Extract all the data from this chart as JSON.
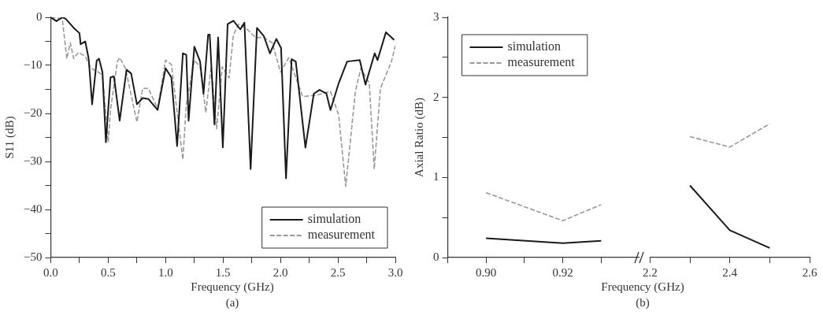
{
  "chart_data": [
    {
      "type": "line",
      "ylabel": "S11 (dB)",
      "xlabel": "Frequency (GHz)",
      "annotations": [
        "(a)"
      ],
      "xlim": [
        0,
        3
      ],
      "xticks": [
        {
          "value": 0,
          "label": "0.0"
        },
        {
          "value": 0.25,
          "label": null
        },
        {
          "value": 0.5,
          "label": "0.5"
        },
        {
          "value": 0.75,
          "label": null
        },
        {
          "value": 1,
          "label": "1.0"
        },
        {
          "value": 1.25,
          "label": null
        },
        {
          "value": 1.5,
          "label": "1.5"
        },
        {
          "value": 1.75,
          "label": null
        },
        {
          "value": 2,
          "label": "2.0"
        },
        {
          "value": 2.25,
          "label": null
        },
        {
          "value": 2.5,
          "label": "2.5"
        },
        {
          "value": 2.75,
          "label": null
        },
        {
          "value": 3,
          "label": "3.0"
        }
      ],
      "ylim": [
        -50,
        0
      ],
      "yticks": [
        {
          "value": -50,
          "label": "−50"
        },
        {
          "value": -45,
          "label": null
        },
        {
          "value": -40,
          "label": "−40"
        },
        {
          "value": -35,
          "label": null
        },
        {
          "value": -30,
          "label": "−30"
        },
        {
          "value": -25,
          "label": null
        },
        {
          "value": -20,
          "label": "−20"
        },
        {
          "value": -15,
          "label": null
        },
        {
          "value": -10,
          "label": "−10"
        },
        {
          "value": -5,
          "label": null
        },
        {
          "value": 0,
          "label": "0"
        }
      ],
      "grid": false,
      "legend": "bottom right",
      "marker": "none",
      "series": [
        {
          "name": "simulation",
          "color": "#1a1a1a",
          "line_style": "solid",
          "x": [
            0,
            0.05,
            0.1,
            0.13,
            0.2,
            0.25,
            0.26,
            0.3,
            0.33,
            0.36,
            0.4,
            0.42,
            0.45,
            0.48,
            0.52,
            0.55,
            0.6,
            0.66,
            0.7,
            0.75,
            0.8,
            0.85,
            0.93,
            1,
            1.05,
            1.1,
            1.15,
            1.18,
            1.2,
            1.25,
            1.3,
            1.33,
            1.37,
            1.384,
            1.425,
            1.457,
            1.498,
            1.54,
            1.59,
            1.65,
            1.686,
            1.74,
            1.795,
            1.855,
            1.908,
            1.964,
            2.005,
            2.048,
            2.097,
            2.133,
            2.217,
            2.29,
            2.34,
            2.4,
            2.435,
            2.507,
            2.58,
            2.69,
            2.74,
            2.82,
            2.845,
            2.918,
            2.99
          ],
          "values": [
            0,
            -0.8,
            0,
            -0.3,
            -2.2,
            -3.3,
            -5.6,
            -5,
            -8.6,
            -18.1,
            -9,
            -8.6,
            -11.4,
            -26,
            -12.5,
            -12.3,
            -21.5,
            -10.9,
            -11.7,
            -18.1,
            -16.8,
            -17,
            -19.3,
            -10.6,
            -12.5,
            -26.8,
            -7.5,
            -7.8,
            -21.5,
            -6.1,
            -9.2,
            -15.9,
            -3.6,
            -3.6,
            -22.3,
            -4.2,
            -27.1,
            -1.4,
            -0.7,
            -2.5,
            -1.1,
            -31.6,
            -2.2,
            -3.9,
            -7.5,
            -4.5,
            -6.4,
            -33.5,
            -8.7,
            -9.2,
            -27.1,
            -15.9,
            -15.1,
            -15.9,
            -19.3,
            -13.7,
            -9.2,
            -8.9,
            -14,
            -7.5,
            -8.9,
            -3.1,
            -4.7
          ]
        },
        {
          "name": "measurement",
          "color": "#999999",
          "line_style": "dashed",
          "x": [
            0,
            0.1,
            0.14,
            0.17,
            0.2,
            0.24,
            0.3,
            0.35,
            0.4,
            0.45,
            0.5,
            0.52,
            0.58,
            0.6,
            0.65,
            0.75,
            0.8,
            0.85,
            0.93,
            1,
            1.05,
            1.15,
            1.18,
            1.25,
            1.3,
            1.35,
            1.396,
            1.444,
            1.493,
            1.553,
            1.59,
            1.638,
            1.71,
            1.783,
            1.855,
            1.928,
            2,
            2.072,
            2.193,
            2.314,
            2.435,
            2.507,
            2.568,
            2.652,
            2.7,
            2.773,
            2.816,
            2.87,
            2.966,
            3
          ],
          "values": [
            0,
            -0.3,
            -8.6,
            -5.3,
            -8.6,
            -7.3,
            -8.1,
            -10.6,
            -11.2,
            -12,
            -26,
            -19.3,
            -9.2,
            -8.4,
            -10.6,
            -21.8,
            -14.8,
            -14.8,
            -19,
            -8.9,
            -9.8,
            -29.6,
            -18.1,
            -8.9,
            -10.3,
            -19.8,
            -10.3,
            -23.2,
            -10.3,
            -12.6,
            -3.6,
            -1.4,
            -2.5,
            -4.2,
            -4.2,
            -5.3,
            -11.4,
            -8.4,
            -16.5,
            -16.2,
            -15.4,
            -20.4,
            -35.2,
            -15.4,
            -10.6,
            -13.7,
            -31.6,
            -14.8,
            -9.2,
            -5.9
          ]
        }
      ]
    },
    {
      "type": "line",
      "ylabel": "Axial Ratio (dB)",
      "xlabel": "Frequency (GHz)",
      "annotations": [
        "(b)"
      ],
      "xlim": [
        0.89,
        0.94
      ],
      "xticks": [
        {
          "value": 0.89,
          "label": null
        },
        {
          "value": 0.9,
          "label": "0.90"
        },
        {
          "value": 0.91,
          "label": null
        },
        {
          "value": 0.92,
          "label": "0.92"
        },
        {
          "value": 0.93,
          "label": null
        }
      ],
      "ylim": [
        0,
        3
      ],
      "yticks": [
        0,
        {
          "value": 0.5,
          "label": null
        },
        1,
        {
          "value": 1.5,
          "label": null
        },
        2,
        {
          "value": 2.5,
          "label": null
        },
        3
      ],
      "grid": false,
      "legend": "top left",
      "marker": "none",
      "series": [
        {
          "name": "simulation",
          "color": "#1a1a1a",
          "line_style": "solid",
          "x": [
            0.9,
            0.92,
            0.93
          ],
          "values": [
            0.24,
            0.18,
            0.21
          ]
        },
        {
          "name": "measurement",
          "color": "#999999",
          "line_style": "dashed",
          "x": [
            0.9,
            0.92,
            0.93
          ],
          "values": [
            0.81,
            0.46,
            0.66
          ]
        }
      ]
    },
    {
      "type": "line",
      "tick_labels": "x",
      "xlim": [
        2.2,
        2.6
      ],
      "xticks": [
        2.2,
        {
          "value": 2.3,
          "label": null
        },
        2.4,
        {
          "value": 2.5,
          "label": null
        },
        2.6
      ],
      "ylim": [
        0,
        3
      ],
      "grid": false,
      "marker": "none",
      "series": [
        {
          "color": "#1a1a1a",
          "line_style": "solid",
          "x": [
            2.3,
            2.4,
            2.5
          ],
          "values": [
            0.9,
            0.34,
            0.12
          ]
        },
        {
          "color": "#999999",
          "line_style": "dashed",
          "x": [
            2.3,
            2.4,
            2.5
          ],
          "values": [
            1.51,
            1.38,
            1.67
          ]
        }
      ]
    }
  ]
}
